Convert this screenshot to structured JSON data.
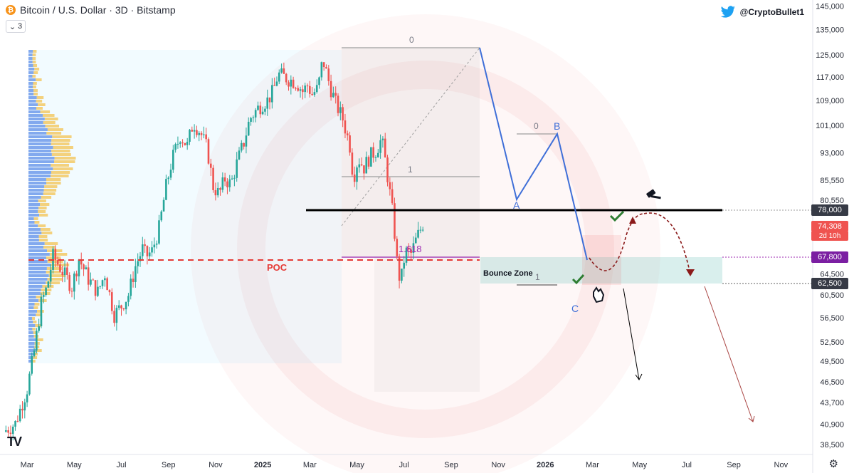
{
  "header": {
    "coin_symbol": "₿",
    "title": "Bitcoin / U.S. Dollar · 3D · Bitstamp",
    "interval_chevron": "⌄",
    "interval_value": "3"
  },
  "branding": {
    "twitter_handle": "@CryptoBullet1",
    "tv_logo": "TV"
  },
  "colors": {
    "up": "#26a69a",
    "down": "#ef5350",
    "poc": "#e53935",
    "wave": "#3f6fd8",
    "fib_purple": "#9c27b0",
    "badge_current": "#ef5350",
    "badge_67800": "#7b1fa2",
    "badge_dark": "#363a45"
  },
  "chart_data": {
    "type": "candlestick",
    "symbol": "Bitcoin / U.S. Dollar",
    "interval": "3D",
    "exchange": "Bitstamp",
    "x_ticks": [
      "Mar",
      "May",
      "Jul",
      "Sep",
      "Nov",
      "2025",
      "Mar",
      "May",
      "Jul",
      "Sep",
      "Nov",
      "2026",
      "Mar",
      "May",
      "Jul",
      "Sep",
      "Nov"
    ],
    "y_ticks": [
      "145,000",
      "135,000",
      "125,000",
      "117,000",
      "109,000",
      "101,000",
      "93,000",
      "85,550",
      "80,550",
      "64,500",
      "60,500",
      "56,500",
      "52,500",
      "49,500",
      "46,500",
      "43,700",
      "40,900",
      "38,500"
    ],
    "y_scale": "log",
    "y_range": [
      37500,
      147000
    ],
    "levels": {
      "resistance": 78000,
      "bounce_top": 67800,
      "bounce_bottom": 62500,
      "poc": 68200
    },
    "price_labels": {
      "resistance": "78,000",
      "current_price": "74,308",
      "countdown": "2d 10h",
      "bounce_top": "67,800",
      "bounce_bottom": "62,500"
    },
    "annotations": {
      "poc": "POC",
      "bounce_zone": "Bounce Zone",
      "wave_a": "A",
      "wave_b": "B",
      "wave_c": "C",
      "fib_0_major": "0",
      "fib_1_major": "1",
      "fib_1618": "1.618",
      "fib_0_minor": "0",
      "fib_1_minor": "1"
    },
    "price_path": [
      [
        0,
        40000
      ],
      [
        0.5,
        41000
      ],
      [
        1,
        45500
      ],
      [
        1.3,
        51000
      ],
      [
        1.6,
        59000
      ],
      [
        1.85,
        62000
      ],
      [
        2.1,
        68000
      ],
      [
        2.5,
        65000
      ],
      [
        2.9,
        62000
      ],
      [
        3.2,
        67500
      ],
      [
        3.6,
        63500
      ],
      [
        4,
        61000
      ],
      [
        4.3,
        64500
      ],
      [
        4.7,
        57000
      ],
      [
        5,
        58500
      ],
      [
        5.3,
        60500
      ],
      [
        5.6,
        66000
      ],
      [
        5.9,
        69500
      ],
      [
        6.05,
        68000
      ],
      [
        6.3,
        69000
      ],
      [
        6.6,
        74000
      ],
      [
        6.9,
        84000
      ],
      [
        7.15,
        91000
      ],
      [
        7.5,
        98000
      ],
      [
        7.8,
        95000
      ],
      [
        8.05,
        102000
      ],
      [
        8.35,
        99000
      ],
      [
        8.65,
        94000
      ],
      [
        8.9,
        84000
      ],
      [
        9.15,
        82000
      ],
      [
        9.4,
        86000
      ],
      [
        9.65,
        84500
      ],
      [
        9.9,
        90000
      ],
      [
        10.2,
        96000
      ],
      [
        10.45,
        103000
      ],
      [
        10.75,
        106000
      ],
      [
        11,
        108000
      ],
      [
        11.2,
        109000
      ],
      [
        11.45,
        112000
      ],
      [
        11.65,
        118000
      ],
      [
        11.9,
        117000
      ],
      [
        12.15,
        116000
      ],
      [
        12.45,
        115000
      ],
      [
        12.7,
        112000
      ],
      [
        12.9,
        114000
      ],
      [
        13.1,
        111000
      ],
      [
        13.35,
        113000
      ],
      [
        13.55,
        123500
      ],
      [
        13.85,
        114000
      ],
      [
        14.1,
        108000
      ],
      [
        14.4,
        103000
      ],
      [
        14.7,
        95000
      ],
      [
        14.85,
        86000
      ],
      [
        15.05,
        91500
      ],
      [
        15.3,
        89000
      ],
      [
        15.55,
        92000
      ],
      [
        15.8,
        93500
      ],
      [
        16.05,
        97000
      ],
      [
        16.25,
        89000
      ],
      [
        16.55,
        76000
      ],
      [
        16.7,
        67000
      ],
      [
        16.85,
        62500
      ],
      [
        17.05,
        69000
      ],
      [
        17.3,
        68500
      ],
      [
        17.55,
        72000
      ],
      [
        17.8,
        75000
      ]
    ]
  }
}
